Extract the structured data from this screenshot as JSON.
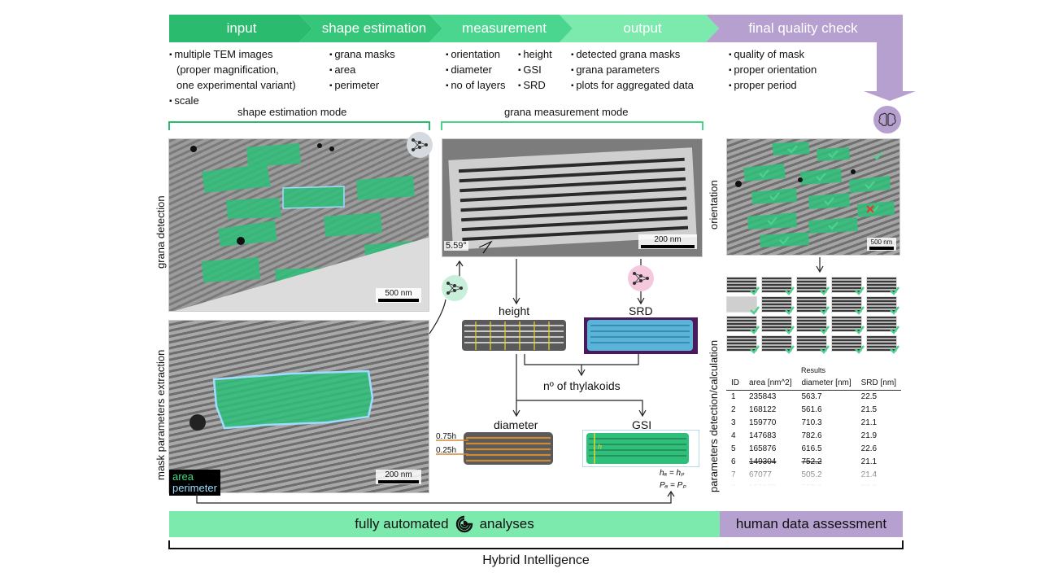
{
  "steps": [
    {
      "label": "input"
    },
    {
      "label": "shape estimation"
    },
    {
      "label": "measurement"
    },
    {
      "label": "output"
    },
    {
      "label": "final quality check"
    }
  ],
  "input_items": [
    "multiple TEM images",
    "(proper magnification,",
    "one experimental variant)",
    "scale"
  ],
  "shape_items": [
    "grana masks",
    "area",
    "perimeter"
  ],
  "measurement_items_a": [
    "orientation",
    "diameter",
    "no of layers"
  ],
  "measurement_items_b": [
    "height",
    "GSI",
    "SRD"
  ],
  "output_items": [
    "detected grana masks",
    "grana parameters",
    "plots for aggregated data"
  ],
  "quality_items": [
    "quality of mask",
    "proper orientation",
    "proper period"
  ],
  "modes": {
    "shape": "shape estimation mode",
    "grana": "grana measurement mode"
  },
  "side_labels": {
    "grana_detection": "grana detection",
    "mask_params": "mask parameters extraction",
    "orientation": "orientation",
    "params_calc": "parameters detection/calculation"
  },
  "legend": {
    "area": "area",
    "perimeter": "perimeter"
  },
  "scale_bars": {
    "s500a": "500 nm",
    "s200a": "200 nm",
    "s200b": "200 nm",
    "s500b": "500 nm"
  },
  "angle": "5.59°",
  "flow_labels": {
    "height": "height",
    "srd": "SRD",
    "thylakoids": "nº of thylakoids",
    "diameter": "diameter",
    "gsi": "GSI",
    "h075": "0.75h",
    "h025": "0.25h",
    "h_sym": "h",
    "eq1": "hₐ = hₚ",
    "eq2": "Pₐ = Pₚ"
  },
  "results": {
    "title": "Results",
    "headers": [
      "ID",
      "area [nm^2]",
      "diameter [nm]",
      "SRD [nm]"
    ],
    "rows": [
      [
        "1",
        "235843",
        "563.7",
        "22.5"
      ],
      [
        "2",
        "168122",
        "561.6",
        "21.5"
      ],
      [
        "3",
        "159770",
        "710.3",
        "21.1"
      ],
      [
        "4",
        "147683",
        "782.6",
        "21.9"
      ],
      [
        "5",
        "165876",
        "616.5",
        "22.6"
      ],
      [
        "6",
        "149304",
        "752.2",
        "21.1"
      ],
      [
        "7",
        "67077",
        "505.2",
        "21.4"
      ],
      [
        "8",
        "151269",
        "593.0",
        "22.0"
      ]
    ]
  },
  "bottom": {
    "automated_a": "fully automated",
    "automated_b": "analyses",
    "human": "human data assessment",
    "hybrid": "Hybrid Intelligence"
  },
  "icons": [
    "neural-network-icon",
    "brain-icon",
    "checkmark-icon",
    "cross-icon",
    "angle-icon",
    "logo-icon"
  ],
  "colors": {
    "green_dark": "#2bbb6e",
    "green_mid": "#46d58b",
    "green_light": "#7ceaad",
    "purple": "#b6a0d0",
    "mask_green": "#2fbf7a",
    "mask_blue": "#6ab8d8",
    "mask_orange": "#c98a3a",
    "check": "#4cd28e",
    "cross": "#e53935"
  }
}
